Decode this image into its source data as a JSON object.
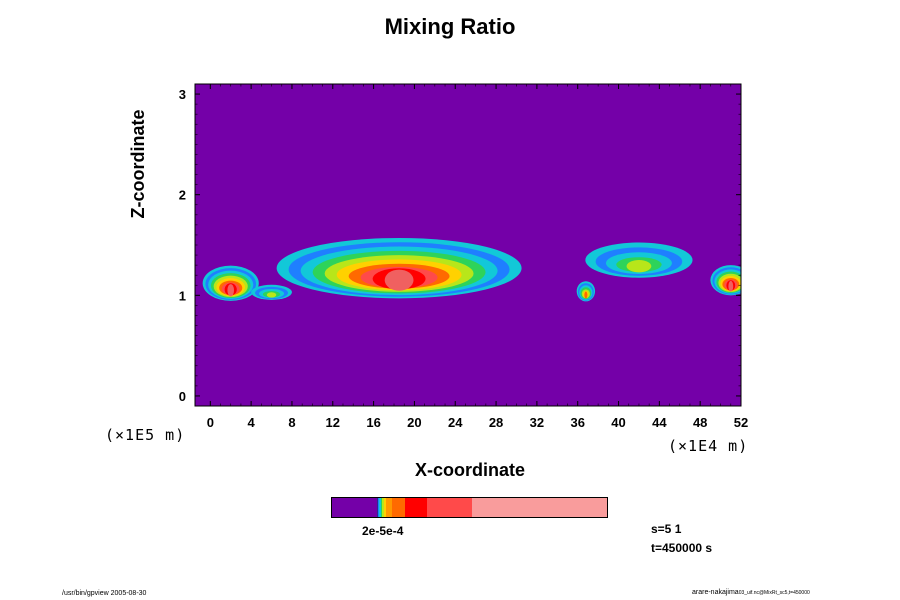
{
  "chart_data": {
    "type": "heatmap",
    "title": "Mixing Ratio",
    "xlabel": "X-coordinate",
    "ylabel": "Z-coordinate",
    "x_unit": "(×1E4 m)",
    "y_unit": "(×1E5 m)",
    "xlim": [
      -1.5,
      52
    ],
    "ylim": [
      -0.1,
      3.1
    ],
    "x_ticks": [
      "0",
      "4",
      "8",
      "12",
      "16",
      "20",
      "24",
      "28",
      "32",
      "36",
      "40",
      "44",
      "48",
      "52"
    ],
    "y_ticks": [
      "0",
      "1",
      "2",
      "3"
    ],
    "background_value_color": "#7400a8",
    "features": [
      {
        "x_center": 2.0,
        "z_center": 1.12,
        "x_width": 5.5,
        "z_height": 0.35,
        "peak_level": "red"
      },
      {
        "x_center": 6.0,
        "z_center": 1.03,
        "x_width": 4.0,
        "z_height": 0.15,
        "peak_level": "green"
      },
      {
        "x_center": 18.5,
        "z_center": 1.27,
        "x_width": 24.0,
        "z_height": 0.6,
        "peak_level": "red"
      },
      {
        "x_center": 36.8,
        "z_center": 1.04,
        "x_width": 1.8,
        "z_height": 0.2,
        "peak_level": "yellow"
      },
      {
        "x_center": 42.0,
        "z_center": 1.35,
        "x_width": 10.5,
        "z_height": 0.35,
        "peak_level": "green"
      },
      {
        "x_center": 51.0,
        "z_center": 1.15,
        "x_width": 4.0,
        "z_height": 0.3,
        "peak_level": "red"
      }
    ],
    "colorbar": {
      "colors": [
        "#7400a8",
        "#2d2b8f",
        "#1f7fff",
        "#12c8d8",
        "#2ed35a",
        "#b8e61a",
        "#ffd100",
        "#ff9900",
        "#ff6a00",
        "#ff0000",
        "#ff4a4a",
        "#f99c9c"
      ],
      "fractions": [
        0.165,
        0.005,
        0.005,
        0.005,
        0.005,
        0.005,
        0.01,
        0.02,
        0.05,
        0.08,
        0.165,
        0.5
      ],
      "tick_label": "2e-5e-4"
    },
    "grid": false
  },
  "info": {
    "s": "s=5 1",
    "t": "t=450000 s"
  },
  "footer": {
    "left": "/usr/bin/gpview 2005-08-30",
    "right": "arare-nakajima",
    "right_sub": "03_uif.nc@MixRt_sc5,t=450000"
  }
}
